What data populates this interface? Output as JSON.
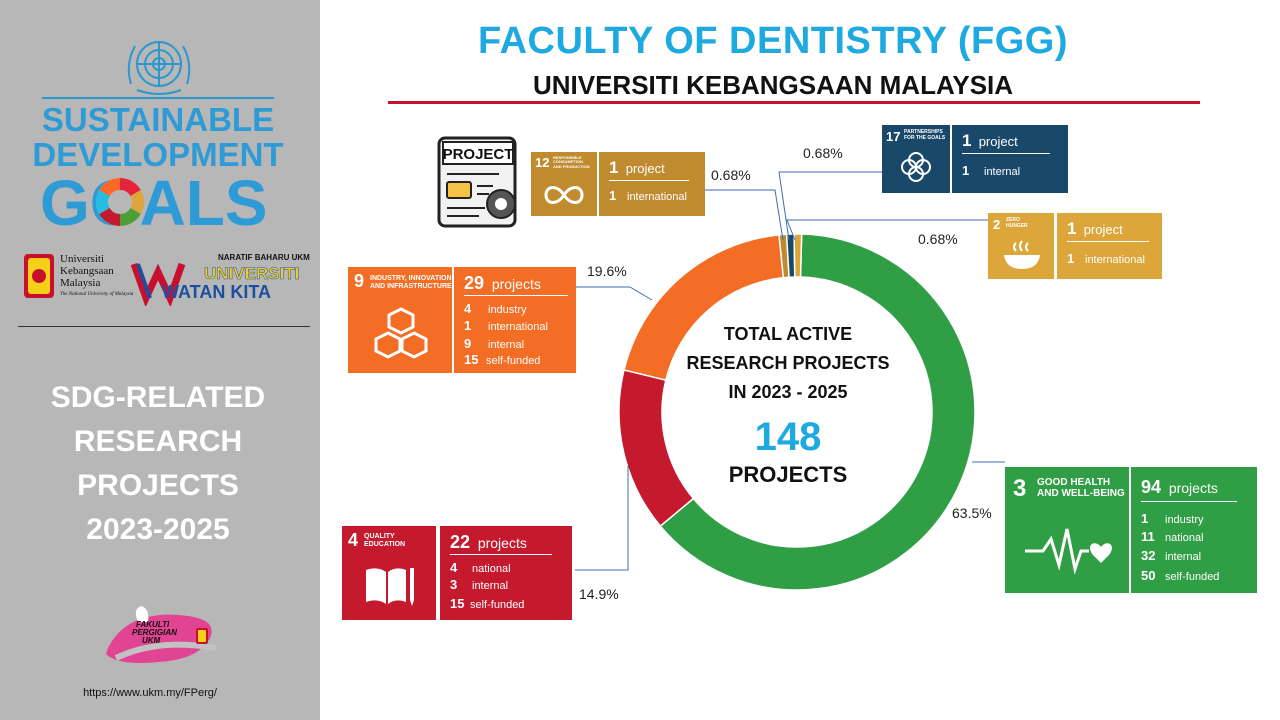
{
  "header": {
    "title": "FACULTY OF DENTISTRY (FGG)",
    "subtitle": "UNIVERSITI KEBANGSAAN MALAYSIA"
  },
  "sidebar": {
    "sdg_line1": "SUSTAINABLE",
    "sdg_line2": "DEVELOPMENT",
    "sdg_line3": "GOALS",
    "ukm_name": [
      "Universiti",
      "Kebangsaan",
      "Malaysia"
    ],
    "ukm_tagline": "The National University of Malaysia",
    "naratif": "NARATIF BAHARU UKM",
    "watan1": "UNIVERSITI",
    "watan2": "WATAN KITA",
    "title_lines": [
      "SDG-RELATED",
      "RESEARCH",
      "PROJECTS",
      "2023-2025"
    ],
    "fpergi": [
      "FAKULTI",
      "PERGIGIAN",
      "UKM"
    ],
    "url": "https://www.ukm.my/FPerg/"
  },
  "center": {
    "lines": [
      "TOTAL ACTIVE",
      "RESEARCH PROJECTS",
      "IN 2023 - 2025"
    ],
    "total": "148",
    "unit": "PROJECTS"
  },
  "project_icon_label": "PROJECT",
  "colors": {
    "sdg3": "#2f9e44",
    "sdg4": "#c5192d",
    "sdg9": "#f36d25",
    "sdg12": "#bf8b2e",
    "sdg17": "#19486a",
    "sdg2": "#dda63a",
    "title_blue": "#1fa9e1"
  },
  "chart_data": {
    "type": "pie",
    "donut": true,
    "total": 148,
    "series": [
      {
        "name": "3 GOOD HEALTH AND WELL-BEING",
        "value": 94,
        "percent_label": "63.5%",
        "color": "#2f9e44"
      },
      {
        "name": "4 QUALITY EDUCATION",
        "value": 22,
        "percent_label": "14.9%",
        "color": "#c5192d"
      },
      {
        "name": "9 INDUSTRY, INNOVATION AND INFRASTRUCTURE",
        "value": 29,
        "percent_label": "19.6%",
        "color": "#f36d25"
      },
      {
        "name": "12 RESPONSIBLE CONSUMPTION AND PRODUCTION",
        "value": 1,
        "percent_label": "0.68%",
        "color": "#bf8b2e"
      },
      {
        "name": "17 PARTNERSHIPS FOR THE GOALS",
        "value": 1,
        "percent_label": "0.68%",
        "color": "#19486a"
      },
      {
        "name": "2 ZERO HUNGER",
        "value": 1,
        "percent_label": "0.68%",
        "color": "#dda63a"
      }
    ]
  },
  "cards": {
    "sdg3": {
      "number": "3",
      "label": [
        "GOOD HEALTH",
        "AND WELL-BEING"
      ],
      "count": "94",
      "unit": "projects",
      "rows": [
        [
          "1",
          "industry"
        ],
        [
          "11",
          "national"
        ],
        [
          "32",
          "internal"
        ],
        [
          "50",
          "self-funded"
        ]
      ]
    },
    "sdg4": {
      "number": "4",
      "label": [
        "QUALITY",
        "EDUCATION"
      ],
      "count": "22",
      "unit": "projects",
      "rows": [
        [
          "4",
          "national"
        ],
        [
          "3",
          "internal"
        ],
        [
          "15",
          "self-funded"
        ]
      ]
    },
    "sdg9": {
      "number": "9",
      "label": [
        "INDUSTRY, INNOVATION",
        "AND INFRASTRUCTURE"
      ],
      "count": "29",
      "unit": "projects",
      "rows": [
        [
          "4",
          "industry"
        ],
        [
          "1",
          "international"
        ],
        [
          "9",
          "internal"
        ],
        [
          "15",
          "self-funded"
        ]
      ]
    },
    "sdg12": {
      "number": "12",
      "label": [
        "RESPONSIBLE",
        "CONSUMPTION",
        "AND PRODUCTION"
      ],
      "count": "1",
      "unit": "project",
      "rows": [
        [
          "1",
          "international"
        ]
      ]
    },
    "sdg17": {
      "number": "17",
      "label": [
        "PARTNERSHIPS",
        "FOR THE GOALS"
      ],
      "count": "1",
      "unit": "project",
      "rows": [
        [
          "1",
          "internal"
        ]
      ]
    },
    "sdg2": {
      "number": "2",
      "label": [
        "ZERO",
        "HUNGER"
      ],
      "count": "1",
      "unit": "project",
      "rows": [
        [
          "1",
          "international"
        ]
      ]
    }
  }
}
